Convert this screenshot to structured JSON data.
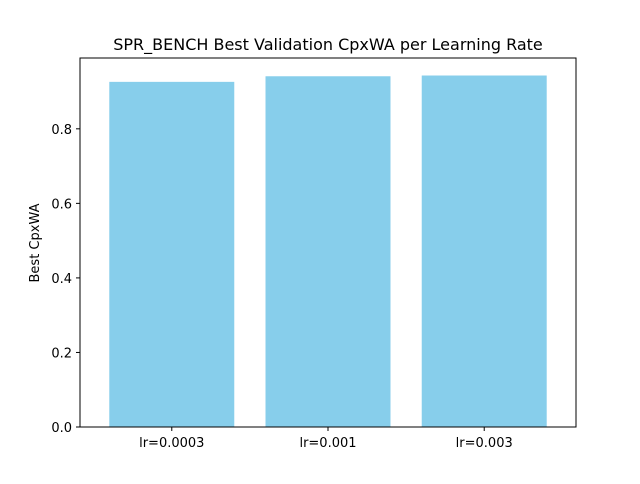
{
  "chart_data": {
    "type": "bar",
    "title": "SPR_BENCH Best Validation CpxWA per Learning Rate",
    "xlabel": "",
    "ylabel": "Best CpxWA",
    "categories": [
      "lr=0.0003",
      "lr=0.001",
      "lr=0.003"
    ],
    "values": [
      0.926,
      0.941,
      0.943
    ],
    "ylim": [
      0,
      0.99
    ],
    "yticks": [
      0.0,
      0.2,
      0.4,
      0.6,
      0.8
    ],
    "ytick_labels": [
      "0.0",
      "0.2",
      "0.4",
      "0.6",
      "0.8"
    ],
    "bar_color": "#87ceeb",
    "grid": false,
    "legend": "none"
  }
}
